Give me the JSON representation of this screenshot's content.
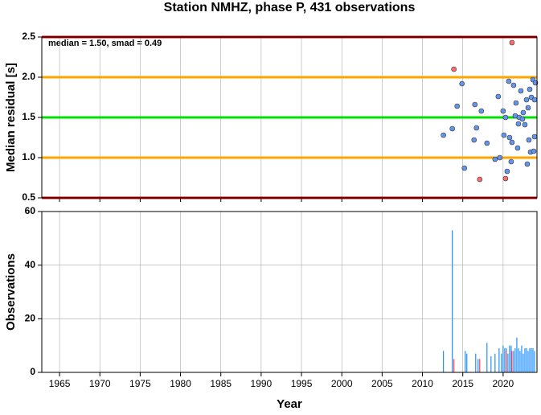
{
  "chart_data": [
    {
      "type": "scatter",
      "title": "Station NMHZ, phase P, 431 observations",
      "ylabel": "Median residual [s]",
      "annotation": "median = 1.50, smad = 0.49",
      "xlim": [
        1962.8,
        2024.2
      ],
      "xticks": [
        1965,
        1970,
        1975,
        1980,
        1985,
        1990,
        1995,
        2000,
        2005,
        2010,
        2015,
        2020
      ],
      "ylim": [
        0.5,
        2.5
      ],
      "yticks": [
        0.5,
        {
          "value": 1.0,
          "label": "1.0"
        },
        1.5,
        {
          "value": 2.0,
          "label": "2.0"
        },
        2.5
      ],
      "grid": true,
      "reference_lines": [
        {
          "value": 2.5,
          "color": "#cc0000"
        },
        {
          "value": 2.0,
          "color": "#ffa500"
        },
        {
          "value": 1.5,
          "color": "#00e000"
        },
        {
          "value": 1.0,
          "color": "#ffa500"
        },
        {
          "value": 0.5,
          "color": "#cc0000"
        }
      ],
      "series": [
        {
          "color": "#6495ed",
          "x": [
            2012.6,
            2013.7,
            2014.3,
            2014.9,
            2015.2,
            2016.4,
            2016.5,
            2016.7,
            2017.3,
            2018.0,
            2019.0,
            2019.4,
            2019.6,
            2020.0,
            2020.1,
            2020.3,
            2020.5,
            2020.7,
            2020.8,
            2021.0,
            2021.1,
            2021.3,
            2021.5,
            2021.6,
            2021.8,
            2021.9,
            2022.0,
            2022.2,
            2022.4,
            2022.5,
            2022.7,
            2022.9,
            2023.0,
            2023.1,
            2023.2,
            2023.3,
            2023.4,
            2023.5,
            2023.7,
            2023.8,
            2023.9,
            2024.0,
            2023.9
          ],
          "values": [
            1.28,
            1.36,
            1.64,
            1.92,
            0.87,
            1.22,
            1.66,
            1.37,
            1.58,
            1.18,
            0.98,
            1.76,
            1.0,
            1.58,
            1.28,
            1.5,
            0.83,
            1.95,
            1.25,
            0.95,
            1.19,
            1.9,
            1.52,
            1.68,
            1.12,
            1.42,
            1.5,
            1.83,
            1.48,
            1.56,
            1.41,
            1.72,
            0.92,
            1.62,
            1.22,
            1.85,
            1.07,
            1.75,
            1.97,
            1.08,
            1.26,
            1.93,
            1.72
          ]
        },
        {
          "color": "#ff6a6a",
          "x": [
            2013.9,
            2021.1,
            2017.1,
            2020.3
          ],
          "values": [
            2.1,
            2.43,
            0.73,
            0.74
          ]
        }
      ]
    },
    {
      "type": "bar",
      "ylabel": "Observations",
      "xlabel": "Year",
      "xlim": [
        1962.8,
        2024.2
      ],
      "xticks": [
        1965,
        1970,
        1975,
        1980,
        1985,
        1990,
        1995,
        2000,
        2005,
        2010,
        2015,
        2020
      ],
      "ylim": [
        0,
        60
      ],
      "yticks": [
        0,
        20,
        40,
        60
      ],
      "grid": true,
      "series": [
        {
          "color": "#1e90ff",
          "x": [
            2012.6,
            2013.7,
            2015.3,
            2015.5,
            2016.6,
            2016.9,
            2018.0,
            2018.5,
            2019.0,
            2019.5,
            2019.8,
            2020.0,
            2020.2,
            2020.4,
            2020.6,
            2020.8,
            2021.0,
            2021.3,
            2021.5,
            2021.7,
            2021.9,
            2022.1,
            2022.3,
            2022.5,
            2022.7,
            2022.9,
            2023.1,
            2023.3,
            2023.5,
            2023.7,
            2023.9
          ],
          "values": [
            8,
            53,
            8,
            7,
            7,
            5,
            11,
            6,
            7,
            9,
            7,
            10,
            9,
            9,
            7,
            10,
            10,
            8,
            9,
            13,
            9,
            8,
            10,
            7,
            9,
            9,
            8,
            9,
            9,
            9,
            8
          ]
        },
        {
          "color": "#ff4040",
          "x": [
            2013.9,
            2017.1,
            2020.4,
            2021.1
          ],
          "values": [
            5,
            5,
            8,
            8
          ]
        }
      ]
    }
  ]
}
